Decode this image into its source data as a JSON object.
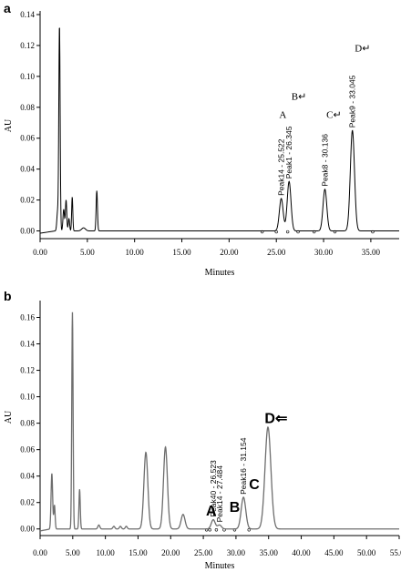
{
  "chart_data": [
    {
      "type": "line",
      "panel": "a",
      "ylabel": "AU",
      "xlabel": "Minutes",
      "xlim": [
        0,
        38
      ],
      "ylim": [
        -0.005,
        0.14
      ],
      "xticks": [
        "0.00",
        "5.00",
        "10.00",
        "15.00",
        "20.00",
        "25.00",
        "30.00",
        "35.00"
      ],
      "yticks": [
        "0.00",
        "0.02",
        "0.04",
        "0.06",
        "0.08",
        "0.10",
        "0.12",
        "0.14"
      ],
      "xtick_values": [
        0,
        5,
        10,
        15,
        20,
        25,
        30,
        35
      ],
      "ytick_values": [
        0,
        0.02,
        0.04,
        0.06,
        0.08,
        0.1,
        0.12,
        0.14
      ],
      "stroke": "#000000",
      "baseline": 0.0,
      "peaks": [
        {
          "rt": 2.05,
          "h": 0.133,
          "w": 0.07
        },
        {
          "rt": 1.85,
          "h": 0.012,
          "w": 0.08
        },
        {
          "rt": 2.5,
          "h": 0.014,
          "w": 0.08
        },
        {
          "rt": 2.75,
          "h": 0.02,
          "w": 0.07
        },
        {
          "rt": 3.05,
          "h": 0.008,
          "w": 0.07
        },
        {
          "rt": 3.4,
          "h": 0.022,
          "w": 0.06
        },
        {
          "rt": 4.6,
          "h": 0.002,
          "w": 0.2
        },
        {
          "rt": 6.0,
          "h": 0.026,
          "w": 0.07
        },
        {
          "rt": 25.52,
          "h": 0.021,
          "w": 0.2
        },
        {
          "rt": 26.35,
          "h": 0.032,
          "w": 0.2
        },
        {
          "rt": 30.14,
          "h": 0.027,
          "w": 0.2
        },
        {
          "rt": 33.05,
          "h": 0.065,
          "w": 0.22
        }
      ],
      "peak_labels": [
        {
          "text": "Peak14 - 25.522",
          "rt": 25.52,
          "h": 0.021
        },
        {
          "text": "Peak1 - 26.345",
          "rt": 26.35,
          "h": 0.032
        },
        {
          "text": "Peak8 - 30.136",
          "rt": 30.14,
          "h": 0.027
        },
        {
          "text": "Peak9 - 33.045",
          "rt": 33.05,
          "h": 0.065
        }
      ],
      "markers": [
        {
          "text": "A",
          "rt": 25.3,
          "y": 0.073
        },
        {
          "text": "B↵",
          "rt": 26.6,
          "y": 0.085
        },
        {
          "text": "C↵",
          "rt": 30.3,
          "y": 0.073
        },
        {
          "text": "D↵",
          "rt": 33.3,
          "y": 0.116
        }
      ],
      "baseline_marks": [
        23.5,
        25.0,
        26.2,
        27.3,
        29.0,
        31.2,
        35.2
      ]
    },
    {
      "type": "line",
      "panel": "b",
      "ylabel": "AU",
      "xlabel": "Minutes",
      "xlim": [
        0,
        55
      ],
      "ylim": [
        -0.005,
        0.17
      ],
      "xticks": [
        "0.00",
        "5.00",
        "10.00",
        "15.00",
        "20.00",
        "25.00",
        "30.00",
        "35.00",
        "40.00",
        "45.00",
        "50.00",
        "55.00"
      ],
      "yticks": [
        "0.00",
        "0.02",
        "0.04",
        "0.06",
        "0.08",
        "0.10",
        "0.12",
        "0.14",
        "0.16"
      ],
      "xtick_values": [
        0,
        5,
        10,
        15,
        20,
        25,
        30,
        35,
        40,
        45,
        50,
        55
      ],
      "ytick_values": [
        0,
        0.02,
        0.04,
        0.06,
        0.08,
        0.1,
        0.12,
        0.14,
        0.16
      ],
      "stroke": "#6e6e6e",
      "baseline": 0.0,
      "peaks": [
        {
          "rt": 1.8,
          "h": 0.042,
          "w": 0.12
        },
        {
          "rt": 2.2,
          "h": 0.018,
          "w": 0.1
        },
        {
          "rt": 4.95,
          "h": 0.164,
          "w": 0.1
        },
        {
          "rt": 6.05,
          "h": 0.03,
          "w": 0.1
        },
        {
          "rt": 9.0,
          "h": 0.003,
          "w": 0.15
        },
        {
          "rt": 11.3,
          "h": 0.002,
          "w": 0.15
        },
        {
          "rt": 12.3,
          "h": 0.002,
          "w": 0.15
        },
        {
          "rt": 13.2,
          "h": 0.002,
          "w": 0.15
        },
        {
          "rt": 16.2,
          "h": 0.058,
          "w": 0.3
        },
        {
          "rt": 19.2,
          "h": 0.062,
          "w": 0.3
        },
        {
          "rt": 21.9,
          "h": 0.011,
          "w": 0.3
        },
        {
          "rt": 26.52,
          "h": 0.007,
          "w": 0.3
        },
        {
          "rt": 27.48,
          "h": 0.003,
          "w": 0.3
        },
        {
          "rt": 31.15,
          "h": 0.024,
          "w": 0.35
        },
        {
          "rt": 34.9,
          "h": 0.077,
          "w": 0.45
        }
      ],
      "peak_labels": [
        {
          "text": "Peak40 - 26.523",
          "rt": 26.52,
          "h": 0.007
        },
        {
          "text": "Peak14 - 27.484",
          "rt": 27.48,
          "h": 0.003
        },
        {
          "text": "Peak16 - 31.154",
          "rt": 31.15,
          "h": 0.024
        }
      ],
      "markers": [
        {
          "text": "A",
          "rt": 25.4,
          "y": 0.01
        },
        {
          "text": "B",
          "rt": 29.0,
          "y": 0.013
        },
        {
          "text": "C",
          "rt": 32.0,
          "y": 0.03
        },
        {
          "text": "D⇐",
          "rt": 34.4,
          "y": 0.08
        }
      ],
      "baseline_marks": [
        25.5,
        26.0,
        27.0,
        28.2,
        29.8,
        32.0
      ]
    }
  ]
}
